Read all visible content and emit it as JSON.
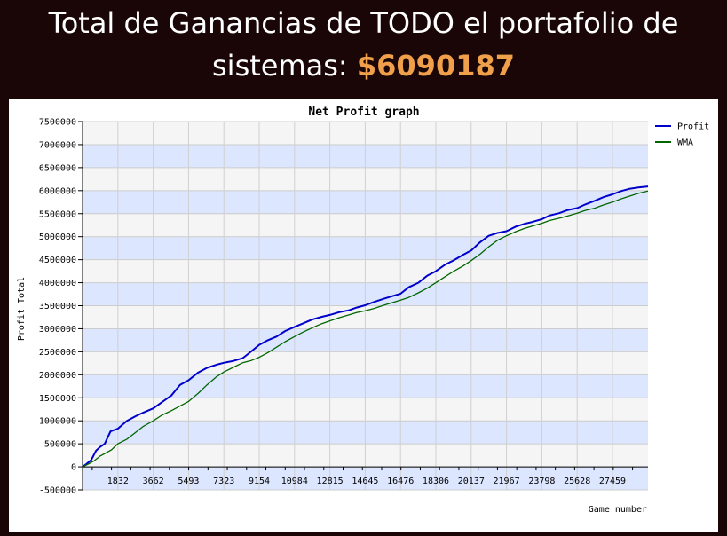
{
  "headline": {
    "text_line1": "Total de Ganancias de TODO el portafolio de",
    "text_line2_prefix": "sistemas: ",
    "amount": "$6090187",
    "amount_color": "#f0a04b"
  },
  "chart_data": {
    "type": "line",
    "title": "Net Profit graph",
    "xlabel": "Game number",
    "ylabel": "Profit Total",
    "xlim": [
      0,
      29300
    ],
    "ylim": [
      -500000,
      7500000
    ],
    "x_ticks": [
      1832,
      3662,
      5493,
      7323,
      9154,
      10984,
      12815,
      14645,
      16476,
      18306,
      20137,
      21967,
      23798,
      25628,
      27459
    ],
    "y_ticks": [
      -500000,
      0,
      500000,
      1000000,
      1500000,
      2000000,
      2500000,
      3000000,
      3500000,
      4000000,
      4500000,
      5000000,
      5500000,
      6000000,
      6500000,
      7000000,
      7500000
    ],
    "grid": true,
    "legend_position": "top-right",
    "series": [
      {
        "name": "Profit",
        "color": "#0000cc",
        "x": [
          0,
          200,
          450,
          700,
          900,
          1150,
          1450,
          1832,
          2300,
          2750,
          3150,
          3662,
          4100,
          4600,
          5050,
          5493,
          6000,
          6450,
          6950,
          7323,
          7800,
          8300,
          8750,
          9154,
          9600,
          10050,
          10500,
          10984,
          11400,
          11900,
          12400,
          12815,
          13300,
          13800,
          14200,
          14645,
          15100,
          15600,
          16000,
          16476,
          16900,
          17400,
          17850,
          18306,
          18750,
          19200,
          19700,
          20137,
          20600,
          21050,
          21500,
          21967,
          22450,
          22900,
          23300,
          23798,
          24200,
          24700,
          25150,
          25628,
          26050,
          26550,
          27000,
          27459,
          27900,
          28350,
          28800,
          29300
        ],
        "y": [
          0,
          60000,
          150000,
          350000,
          430000,
          500000,
          770000,
          830000,
          1000000,
          1100000,
          1180000,
          1270000,
          1400000,
          1550000,
          1780000,
          1880000,
          2050000,
          2150000,
          2220000,
          2260000,
          2300000,
          2360000,
          2510000,
          2650000,
          2750000,
          2830000,
          2950000,
          3040000,
          3110000,
          3200000,
          3260000,
          3300000,
          3360000,
          3400000,
          3460000,
          3510000,
          3580000,
          3650000,
          3700000,
          3760000,
          3900000,
          4000000,
          4150000,
          4250000,
          4380000,
          4480000,
          4600000,
          4700000,
          4880000,
          5020000,
          5080000,
          5120000,
          5220000,
          5280000,
          5320000,
          5380000,
          5460000,
          5510000,
          5580000,
          5620000,
          5700000,
          5780000,
          5860000,
          5920000,
          5990000,
          6040000,
          6070000,
          6090187
        ]
      },
      {
        "name": "WMA",
        "color": "#006600",
        "x": [
          0,
          300,
          600,
          900,
          1200,
          1500,
          1832,
          2300,
          2750,
          3150,
          3662,
          4100,
          4600,
          5050,
          5493,
          6000,
          6450,
          6950,
          7323,
          7800,
          8300,
          8750,
          9154,
          9600,
          10050,
          10500,
          10984,
          11400,
          11900,
          12400,
          12815,
          13300,
          13800,
          14200,
          14645,
          15100,
          15600,
          16000,
          16476,
          16900,
          17400,
          17850,
          18306,
          18750,
          19200,
          19700,
          20137,
          20600,
          21050,
          21500,
          21967,
          22450,
          22900,
          23300,
          23798,
          24200,
          24700,
          25150,
          25628,
          26050,
          26550,
          27000,
          27459,
          27900,
          28350,
          28800,
          29300
        ],
        "y": [
          0,
          60000,
          130000,
          230000,
          300000,
          370000,
          500000,
          600000,
          750000,
          880000,
          1000000,
          1120000,
          1220000,
          1320000,
          1420000,
          1600000,
          1780000,
          1960000,
          2060000,
          2160000,
          2260000,
          2310000,
          2380000,
          2480000,
          2600000,
          2720000,
          2830000,
          2920000,
          3020000,
          3110000,
          3170000,
          3240000,
          3300000,
          3350000,
          3390000,
          3440000,
          3510000,
          3560000,
          3620000,
          3680000,
          3780000,
          3880000,
          4000000,
          4120000,
          4240000,
          4360000,
          4480000,
          4620000,
          4780000,
          4920000,
          5020000,
          5110000,
          5180000,
          5230000,
          5290000,
          5350000,
          5400000,
          5450000,
          5510000,
          5570000,
          5620000,
          5690000,
          5750000,
          5820000,
          5880000,
          5940000,
          5990000
        ]
      }
    ]
  }
}
